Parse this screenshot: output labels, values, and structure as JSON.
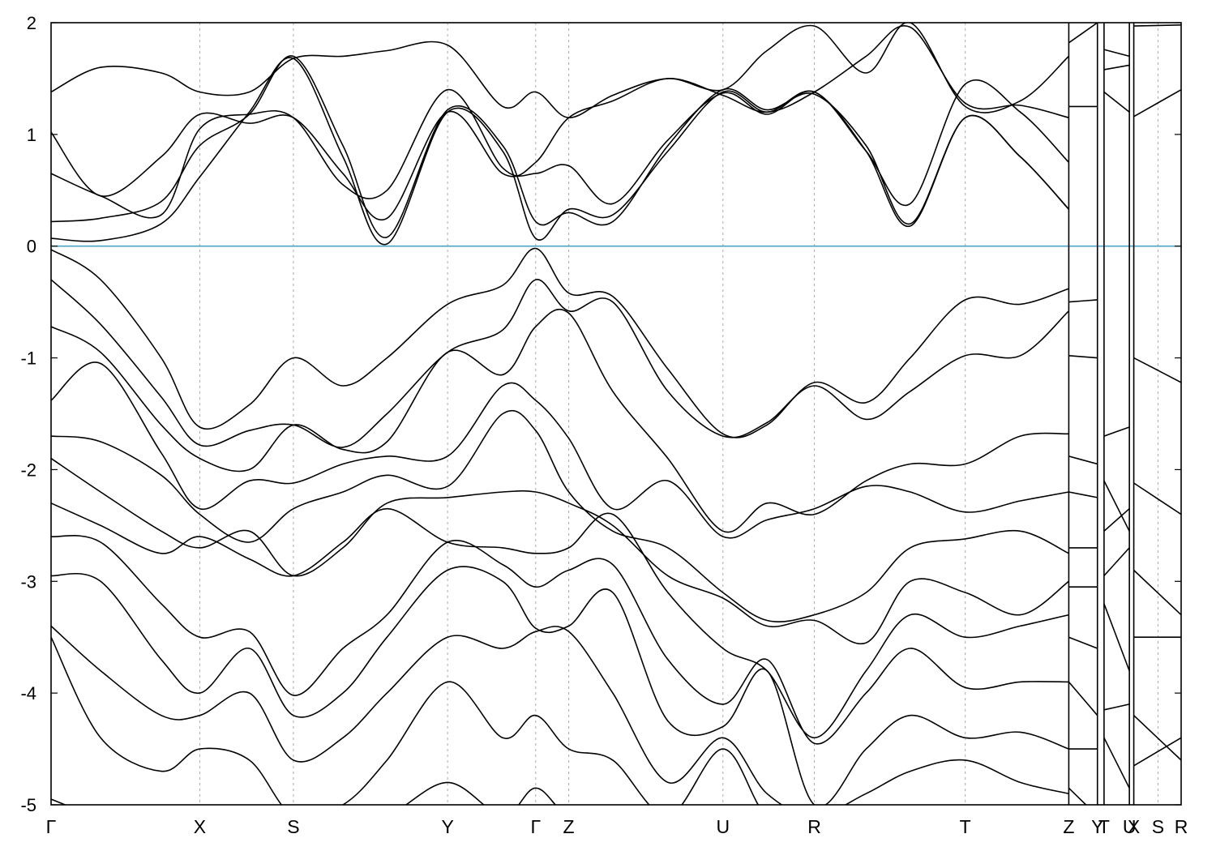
{
  "chart_data": {
    "type": "line",
    "title": "",
    "xlabel": "",
    "ylabel": "",
    "ylim": [
      -5,
      2
    ],
    "y_ticks": [
      2,
      1,
      0,
      -1,
      -2,
      -3,
      -4,
      -5
    ],
    "y_tick_labels": [
      "2",
      "1",
      "0",
      "-1",
      "-2",
      "-3",
      "-4",
      "-5"
    ],
    "kpath_ticks": [
      0,
      1.35,
      2.2,
      3.6,
      4.4,
      4.7,
      6.1,
      6.93,
      8.3,
      9.24,
      9.5,
      9.56,
      9.79,
      9.83,
      10.05,
      10.26
    ],
    "kpath_labels": [
      "Γ",
      "X",
      "S",
      "Y",
      "Γ",
      "Z",
      "U",
      "R",
      "T",
      "Z",
      "Y",
      "T",
      "U",
      "X",
      "S",
      "R"
    ],
    "xlim": [
      0,
      10.26
    ],
    "grid": "vertical dashed lines at high-symmetry points",
    "legend": "none",
    "reference_line": {
      "y": 0,
      "color": "#4aa3c7",
      "meaning": "Fermi level"
    },
    "line_color": "#000000",
    "series": [
      {
        "x": [
          0,
          0.45,
          1.0,
          1.35,
          1.8,
          2.2,
          2.65,
          3.05,
          3.6,
          4.1,
          4.4,
          4.7,
          5.1,
          5.6,
          6.1,
          6.5,
          6.93,
          7.4,
          7.8,
          8.3,
          8.8,
          9.24
        ],
        "values": [
          0.07,
          0.05,
          0.2,
          0.62,
          1.2,
          1.68,
          0.8,
          0.02,
          1.2,
          0.85,
          0.07,
          0.33,
          0.28,
          0.85,
          1.38,
          1.2,
          1.38,
          0.85,
          0.18,
          1.15,
          0.8,
          0.33
        ]
      },
      {
        "x": [
          0,
          0.45,
          1.0,
          1.35,
          1.8,
          2.2,
          2.65,
          3.05,
          3.6,
          4.1,
          4.4,
          4.7,
          5.1,
          5.6,
          6.1,
          6.5,
          6.93,
          7.4,
          7.8,
          8.3,
          8.8,
          9.24
        ],
        "values": [
          0.22,
          0.25,
          0.4,
          0.9,
          1.18,
          1.7,
          0.9,
          0.08,
          1.22,
          0.9,
          0.22,
          0.3,
          0.22,
          0.9,
          1.4,
          1.22,
          1.36,
          0.9,
          0.2,
          1.15,
          0.8,
          0.33
        ]
      },
      {
        "x": [
          0,
          0.45,
          1.0,
          1.35,
          1.8,
          2.2,
          2.65,
          3.05,
          3.6,
          4.1,
          4.4,
          4.7,
          5.1,
          5.6,
          6.1,
          6.5,
          6.93,
          7.4,
          7.8,
          8.3,
          8.8,
          9.24
        ],
        "values": [
          0.65,
          0.45,
          0.28,
          1.05,
          1.18,
          1.15,
          0.55,
          0.5,
          1.4,
          0.7,
          0.65,
          0.72,
          0.38,
          0.95,
          1.37,
          1.18,
          1.38,
          0.85,
          0.38,
          1.45,
          1.2,
          0.75
        ]
      },
      {
        "x": [
          0,
          0.45,
          1.0,
          1.35,
          1.8,
          2.2,
          2.65,
          3.05,
          3.6,
          4.1,
          4.4,
          4.7,
          5.1,
          5.6,
          6.1,
          6.5,
          6.93,
          7.4,
          7.8,
          8.3,
          8.8,
          9.24
        ],
        "values": [
          1.02,
          0.45,
          0.8,
          1.18,
          1.1,
          1.15,
          0.65,
          0.25,
          1.2,
          0.65,
          0.75,
          1.15,
          1.3,
          1.5,
          1.35,
          1.2,
          1.38,
          1.7,
          1.96,
          1.28,
          1.26,
          1.15
        ]
      },
      {
        "x": [
          0,
          0.45,
          1.0,
          1.35,
          1.8,
          2.2,
          2.65,
          3.05,
          3.6,
          4.1,
          4.4,
          4.7,
          5.1,
          5.6,
          6.1,
          6.5,
          6.93,
          7.4,
          7.8,
          8.3,
          8.8,
          9.24
        ],
        "values": [
          1.38,
          1.6,
          1.55,
          1.38,
          1.38,
          1.68,
          1.7,
          1.75,
          1.8,
          1.25,
          1.38,
          1.15,
          1.35,
          1.5,
          1.4,
          1.75,
          1.97,
          1.55,
          2.0,
          1.25,
          1.3,
          1.7
        ]
      },
      {
        "x": [
          0,
          0.45,
          1.0,
          1.35,
          1.8,
          2.2,
          2.65,
          3.05,
          3.6,
          4.1,
          4.4,
          4.7,
          5.1,
          5.6,
          6.1,
          6.5,
          6.93,
          7.4,
          7.8,
          8.3,
          8.8,
          9.24
        ],
        "values": [
          -0.03,
          -0.3,
          -1.0,
          -1.62,
          -1.42,
          -1.0,
          -1.25,
          -1.0,
          -0.52,
          -0.35,
          -0.02,
          -0.42,
          -0.45,
          -1.1,
          -1.68,
          -1.6,
          -1.22,
          -1.4,
          -1.0,
          -0.48,
          -0.52,
          -0.38
        ]
      },
      {
        "x": [
          0,
          0.45,
          1.0,
          1.35,
          1.8,
          2.2,
          2.65,
          3.05,
          3.6,
          4.1,
          4.4,
          4.7,
          5.1,
          5.6,
          6.1,
          6.5,
          6.93,
          7.4,
          7.8,
          8.3,
          8.8,
          9.24
        ],
        "values": [
          -0.3,
          -0.7,
          -1.35,
          -1.78,
          -1.65,
          -1.6,
          -1.8,
          -1.5,
          -0.95,
          -0.75,
          -0.3,
          -0.58,
          -0.5,
          -1.3,
          -1.7,
          -1.58,
          -1.25,
          -1.55,
          -1.3,
          -0.98,
          -0.98,
          -0.58
        ]
      },
      {
        "x": [
          0,
          0.45,
          1.0,
          1.35,
          1.8,
          2.2,
          2.65,
          3.05,
          3.6,
          4.1,
          4.4,
          4.7,
          5.1,
          5.6,
          6.1,
          6.5,
          6.93,
          7.4,
          7.8,
          8.3,
          8.8,
          9.24
        ],
        "values": [
          -0.72,
          -0.95,
          -1.6,
          -1.9,
          -2.0,
          -1.6,
          -1.82,
          -1.75,
          -0.95,
          -1.15,
          -0.72,
          -0.6,
          -1.3,
          -1.9,
          -2.55,
          -2.3,
          -2.4,
          -2.1,
          -1.95,
          -1.95,
          -1.7,
          -1.68
        ]
      },
      {
        "x": [
          0,
          0.45,
          1.0,
          1.35,
          1.8,
          2.2,
          2.65,
          3.05,
          3.6,
          4.1,
          4.4,
          4.7,
          5.1,
          5.6,
          6.1,
          6.5,
          6.93,
          7.4,
          7.8,
          8.3,
          8.8,
          9.24
        ],
        "values": [
          -1.38,
          -1.05,
          -1.85,
          -2.35,
          -2.1,
          -2.12,
          -1.95,
          -1.88,
          -1.88,
          -1.25,
          -1.38,
          -1.72,
          -2.35,
          -2.1,
          -2.6,
          -2.45,
          -2.35,
          -2.15,
          -2.2,
          -2.38,
          -2.28,
          -2.2
        ]
      },
      {
        "x": [
          0,
          0.45,
          1.0,
          1.35,
          1.8,
          2.2,
          2.65,
          3.05,
          3.6,
          4.1,
          4.4,
          4.7,
          5.1,
          5.6,
          6.1,
          6.5,
          6.93,
          7.4,
          7.8,
          8.3,
          8.8,
          9.24
        ],
        "values": [
          -1.7,
          -1.75,
          -2.05,
          -2.4,
          -2.65,
          -2.35,
          -2.2,
          -2.05,
          -2.15,
          -1.5,
          -1.65,
          -2.2,
          -2.55,
          -2.7,
          -3.1,
          -3.35,
          -3.3,
          -3.1,
          -2.7,
          -2.62,
          -2.55,
          -2.75
        ]
      },
      {
        "x": [
          0,
          0.45,
          1.0,
          1.35,
          1.8,
          2.2,
          2.65,
          3.05,
          3.6,
          4.1,
          4.4,
          4.7,
          5.1,
          5.6,
          6.1,
          6.5,
          6.93,
          7.4,
          7.8,
          8.3,
          8.8,
          9.24
        ],
        "values": [
          -1.9,
          -2.2,
          -2.55,
          -2.7,
          -2.55,
          -2.95,
          -2.7,
          -2.3,
          -2.25,
          -2.2,
          -2.2,
          -2.3,
          -2.5,
          -2.95,
          -3.15,
          -3.4,
          -3.35,
          -3.55,
          -3.0,
          -3.1,
          -3.3,
          -3.0
        ]
      },
      {
        "x": [
          0,
          0.45,
          1.0,
          1.35,
          1.8,
          2.2,
          2.65,
          3.05,
          3.6,
          4.1,
          4.4,
          4.7,
          5.1,
          5.6,
          6.1,
          6.5,
          6.93,
          7.4,
          7.8,
          8.3,
          8.8,
          9.24
        ],
        "values": [
          -2.3,
          -2.5,
          -2.75,
          -2.6,
          -2.8,
          -2.95,
          -2.65,
          -2.35,
          -2.65,
          -2.7,
          -2.75,
          -2.7,
          -2.4,
          -3.1,
          -3.6,
          -3.8,
          -4.4,
          -3.8,
          -3.3,
          -3.5,
          -3.4,
          -3.3
        ]
      },
      {
        "x": [
          0,
          0.45,
          1.0,
          1.35,
          1.8,
          2.2,
          2.65,
          3.05,
          3.6,
          4.1,
          4.4,
          4.7,
          5.1,
          5.6,
          6.1,
          6.5,
          6.93,
          7.4,
          7.8,
          8.3,
          8.8,
          9.24
        ],
        "values": [
          -2.6,
          -2.65,
          -3.2,
          -3.5,
          -3.45,
          -4.02,
          -3.6,
          -3.3,
          -2.65,
          -2.85,
          -3.05,
          -2.9,
          -2.85,
          -3.7,
          -4.1,
          -3.7,
          -4.45,
          -4.0,
          -3.6,
          -3.95,
          -3.9,
          -3.9
        ]
      },
      {
        "x": [
          0,
          0.45,
          1.0,
          1.35,
          1.8,
          2.2,
          2.65,
          3.05,
          3.6,
          4.1,
          4.4,
          4.7,
          5.1,
          5.6,
          6.1,
          6.5,
          6.93,
          7.4,
          7.8,
          8.3,
          8.8,
          9.24
        ],
        "values": [
          -2.95,
          -3.0,
          -3.7,
          -4.0,
          -3.6,
          -4.2,
          -4.0,
          -3.5,
          -2.9,
          -3.0,
          -3.42,
          -3.4,
          -3.1,
          -4.25,
          -4.3,
          -3.8,
          -5.0,
          -4.5,
          -4.2,
          -4.4,
          -4.35,
          -4.5
        ]
      },
      {
        "x": [
          0,
          0.45,
          1.0,
          1.35,
          1.8,
          2.2,
          2.65,
          3.05,
          3.6,
          4.1,
          4.4,
          4.7,
          5.1,
          5.6,
          6.1,
          6.5,
          6.93,
          7.4,
          7.8,
          8.3,
          8.8,
          9.24
        ],
        "values": [
          -3.4,
          -3.8,
          -4.2,
          -4.2,
          -4.0,
          -4.6,
          -4.4,
          -4.0,
          -3.5,
          -3.6,
          -3.45,
          -3.45,
          -4.0,
          -4.8,
          -4.4,
          -4.9,
          -5.1,
          -4.9,
          -4.7,
          -4.6,
          -4.8,
          -4.9
        ]
      },
      {
        "x": [
          0,
          0.45,
          1.0,
          1.35,
          1.8,
          2.2,
          2.65,
          3.05,
          3.6,
          4.1,
          4.4,
          4.7,
          5.1,
          5.6,
          6.1,
          6.5,
          6.93,
          7.4,
          7.8,
          8.3,
          8.8,
          9.24
        ],
        "values": [
          -3.5,
          -4.4,
          -4.7,
          -4.5,
          -4.6,
          -5.1,
          -5.0,
          -4.6,
          -3.9,
          -4.4,
          -4.2,
          -4.5,
          -4.6,
          -5.1,
          -4.5,
          -5.1,
          -5.1,
          -5.1,
          -5.1,
          -5.1,
          -5.1,
          -5.1
        ]
      },
      {
        "x": [
          0,
          0.45,
          1.0,
          1.35,
          1.8,
          2.2,
          2.65,
          3.05,
          3.6,
          4.1,
          4.4,
          4.7,
          5.1,
          5.6,
          6.1,
          6.5,
          6.93,
          7.4,
          7.8,
          8.3,
          8.8,
          9.24
        ],
        "values": [
          -4.95,
          -5.1,
          -5.1,
          -5.1,
          -5.1,
          -5.1,
          -5.1,
          -5.1,
          -4.8,
          -5.1,
          -4.85,
          -5.1,
          -5.1,
          -5.1,
          -5.1,
          -5.1,
          -5.1,
          -5.1,
          -5.1,
          -5.1,
          -5.1,
          -5.1
        ]
      },
      {
        "x": [
          9.24,
          9.5
        ],
        "values": [
          1.25,
          1.25
        ]
      },
      {
        "x": [
          9.24,
          9.5
        ],
        "values": [
          1.82,
          2.0
        ]
      },
      {
        "x": [
          9.24,
          9.5
        ],
        "values": [
          -0.5,
          -0.48
        ]
      },
      {
        "x": [
          9.24,
          9.5
        ],
        "values": [
          -0.98,
          -1.0
        ]
      },
      {
        "x": [
          9.24,
          9.5
        ],
        "values": [
          -1.88,
          -1.95
        ]
      },
      {
        "x": [
          9.24,
          9.5
        ],
        "values": [
          -2.2,
          -2.25
        ]
      },
      {
        "x": [
          9.24,
          9.5
        ],
        "values": [
          -2.7,
          -2.7
        ]
      },
      {
        "x": [
          9.24,
          9.5
        ],
        "values": [
          -3.05,
          -3.05
        ]
      },
      {
        "x": [
          9.24,
          9.5
        ],
        "values": [
          -3.5,
          -3.6
        ]
      },
      {
        "x": [
          9.24,
          9.5
        ],
        "values": [
          -3.9,
          -4.2
        ]
      },
      {
        "x": [
          9.24,
          9.5
        ],
        "values": [
          -4.5,
          -4.5
        ]
      },
      {
        "x": [
          9.24,
          9.5
        ],
        "values": [
          -4.85,
          -5.1
        ]
      },
      {
        "x": [
          9.56,
          9.79
        ],
        "values": [
          1.58,
          1.62
        ]
      },
      {
        "x": [
          9.56,
          9.79
        ],
        "values": [
          1.76,
          1.7
        ]
      },
      {
        "x": [
          9.56,
          9.79
        ],
        "values": [
          1.38,
          1.2
        ]
      },
      {
        "x": [
          9.56,
          9.79
        ],
        "values": [
          -1.7,
          -1.62
        ]
      },
      {
        "x": [
          9.56,
          9.79
        ],
        "values": [
          -2.55,
          -2.35
        ]
      },
      {
        "x": [
          9.56,
          9.79
        ],
        "values": [
          -2.1,
          -2.55
        ]
      },
      {
        "x": [
          9.56,
          9.79
        ],
        "values": [
          -2.95,
          -2.7
        ]
      },
      {
        "x": [
          9.56,
          9.79
        ],
        "values": [
          -3.2,
          -3.8
        ]
      },
      {
        "x": [
          9.56,
          9.79
        ],
        "values": [
          -4.15,
          -4.1
        ]
      },
      {
        "x": [
          9.56,
          9.79
        ],
        "values": [
          -4.4,
          -4.85
        ]
      },
      {
        "x": [
          9.83,
          10.26
        ],
        "values": [
          1.16,
          1.4
        ]
      },
      {
        "x": [
          9.83,
          10.26
        ],
        "values": [
          1.97,
          1.98
        ]
      },
      {
        "x": [
          9.83,
          10.26
        ],
        "values": [
          -1.0,
          -1.22
        ]
      },
      {
        "x": [
          9.83,
          10.26
        ],
        "values": [
          -2.12,
          -2.4
        ]
      },
      {
        "x": [
          9.83,
          10.26
        ],
        "values": [
          -2.9,
          -3.3
        ]
      },
      {
        "x": [
          9.83,
          10.26
        ],
        "values": [
          -3.5,
          -3.5
        ]
      },
      {
        "x": [
          9.83,
          10.26
        ],
        "values": [
          -4.2,
          -4.6
        ]
      },
      {
        "x": [
          9.83,
          10.26
        ],
        "values": [
          -4.65,
          -4.4
        ]
      },
      {
        "x": [
          9.83,
          10.26
        ],
        "values": [
          -5.0,
          -5.1
        ]
      }
    ]
  }
}
